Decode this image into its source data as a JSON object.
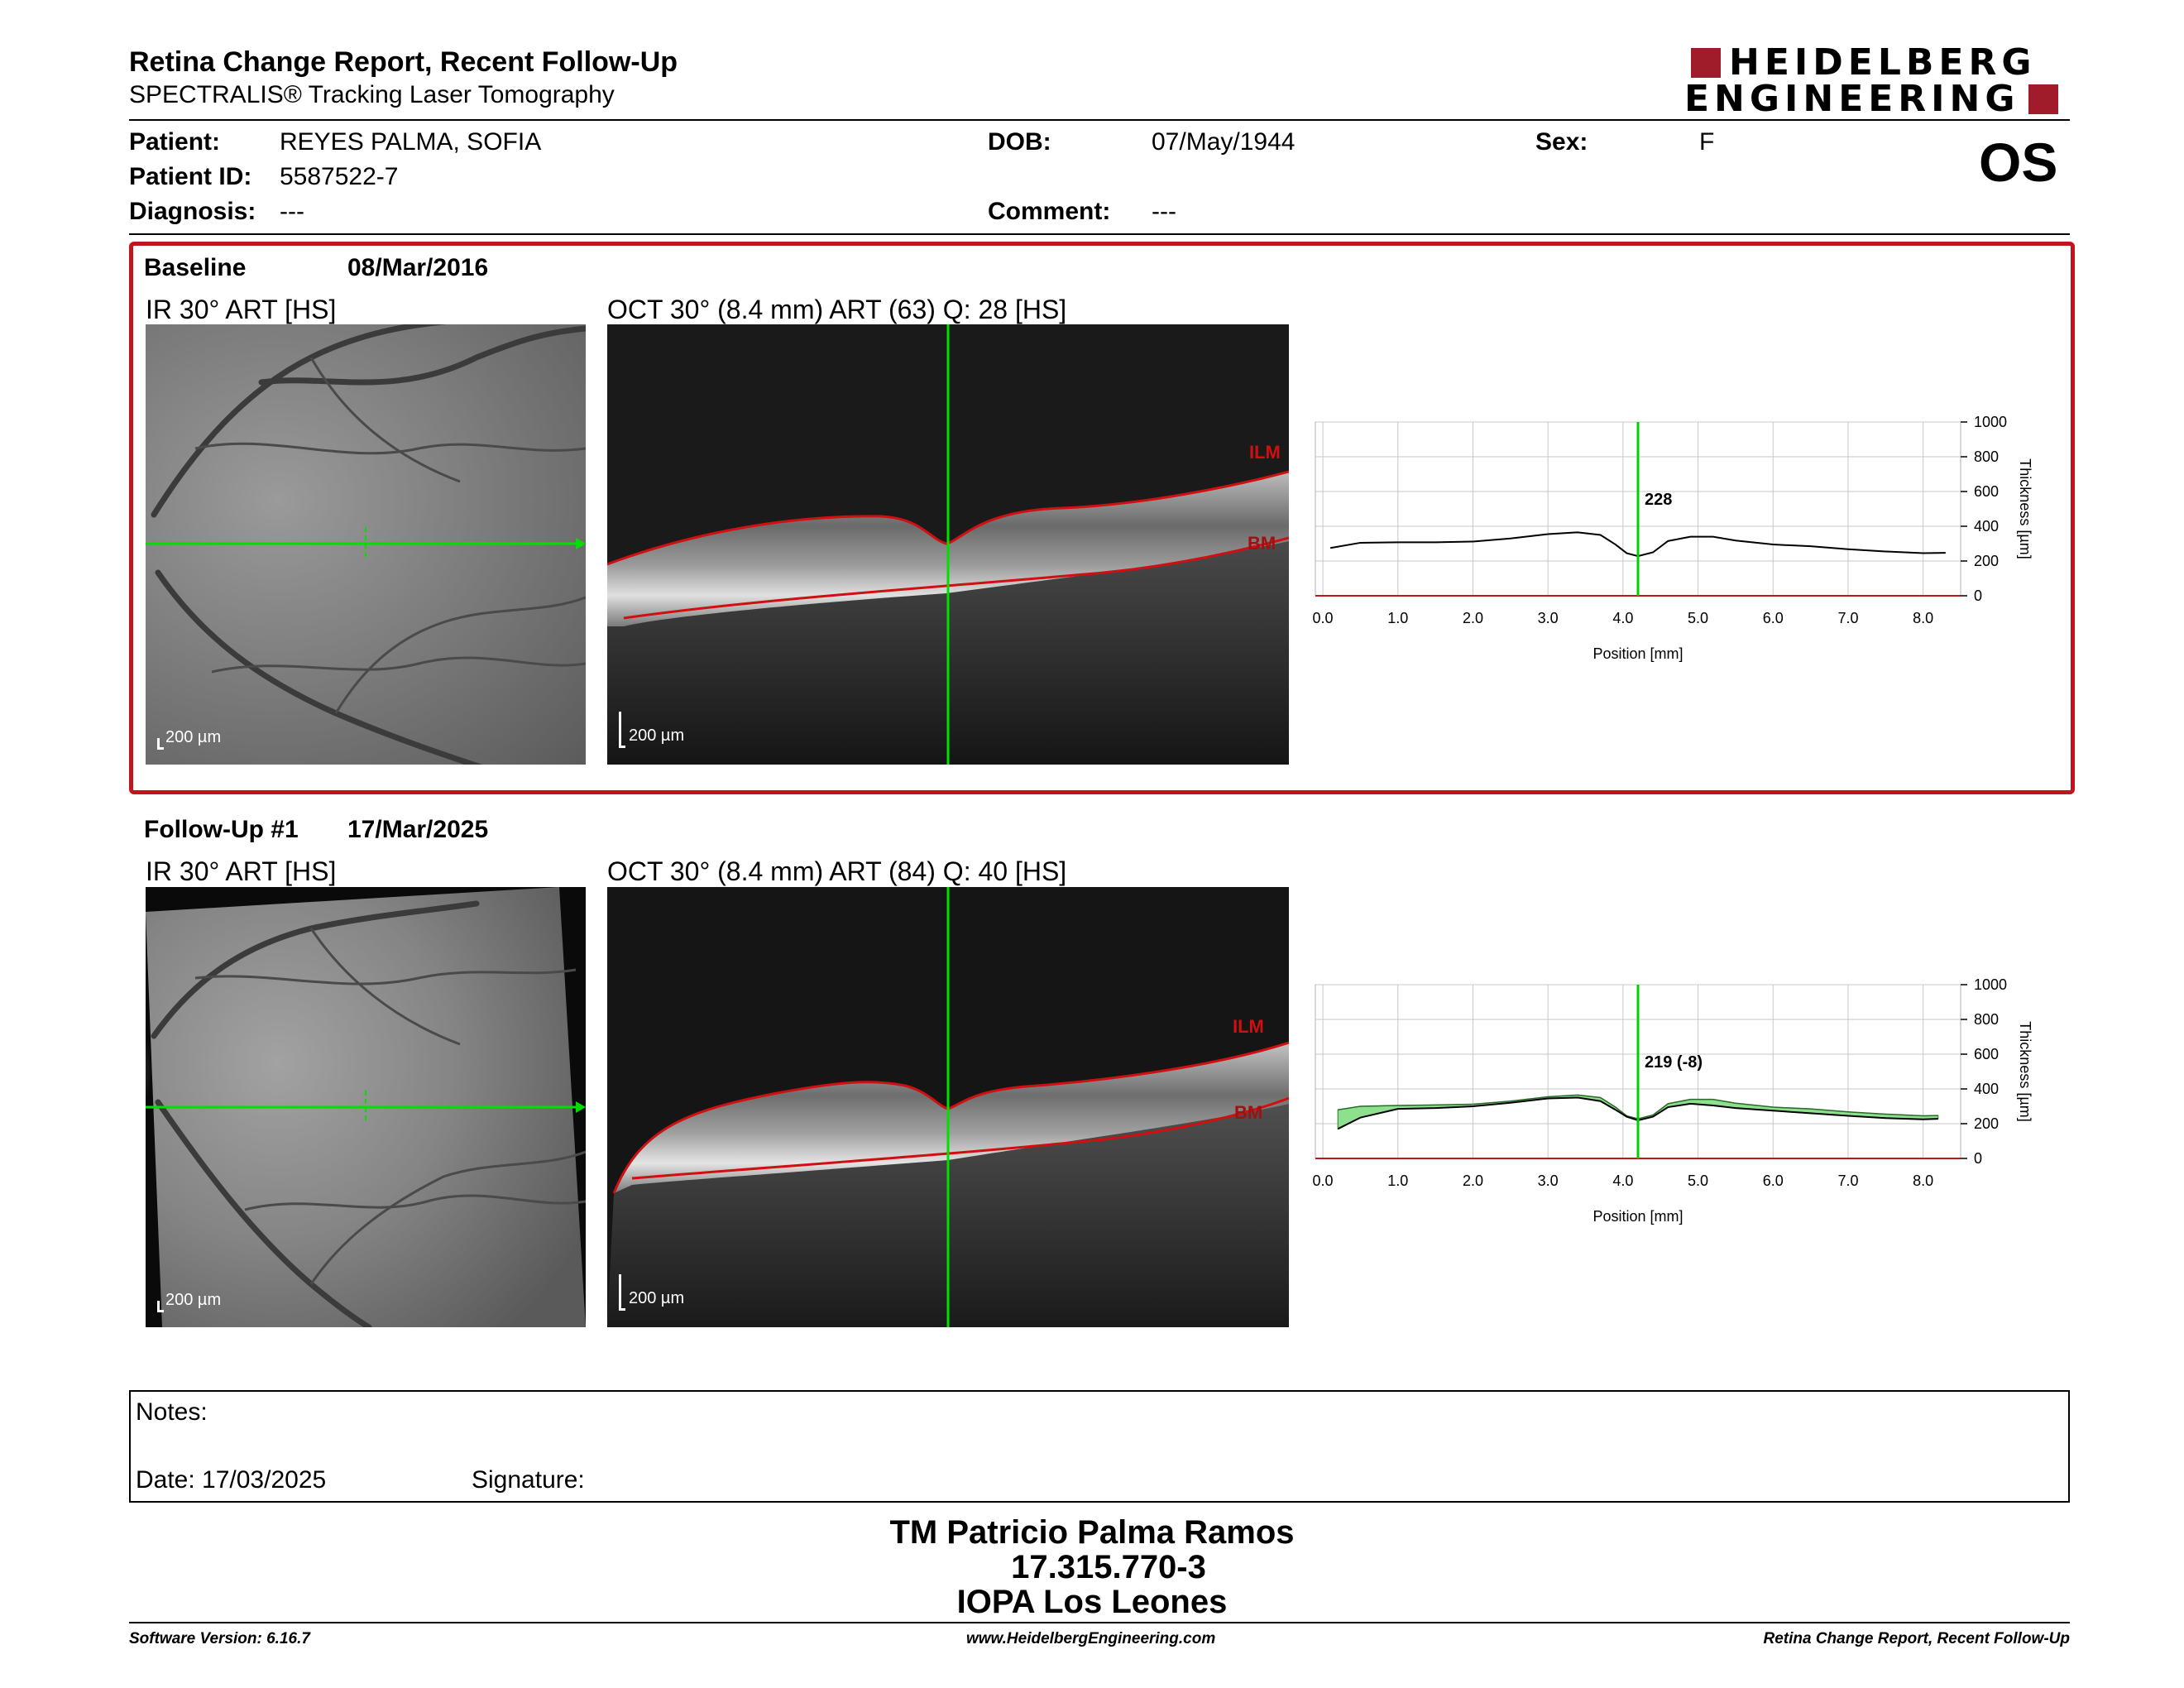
{
  "report": {
    "title": "Retina Change Report, Recent Follow-Up",
    "subtitle": "SPECTRALIS® Tracking Laser Tomography"
  },
  "logo": {
    "line1": "HEIDELBERG",
    "line2": "ENGINEERING",
    "color": "#a01c2a"
  },
  "patient": {
    "patient_label": "Patient:",
    "patient_value": "REYES PALMA, SOFIA",
    "id_label": "Patient ID:",
    "id_value": "5587522-7",
    "diagnosis_label": "Diagnosis:",
    "diagnosis_value": "---",
    "dob_label": "DOB:",
    "dob_value": "07/May/1944",
    "comment_label": "Comment:",
    "comment_value": "---",
    "sex_label": "Sex:",
    "sex_value": "F",
    "eye": "OS"
  },
  "baseline": {
    "label": "Baseline",
    "date": "08/Mar/2016",
    "ir_label": "IR 30° ART [HS]",
    "oct_label": "OCT 30° (8.4 mm) ART (63) Q: 28 [HS]",
    "ir_scale": "200 µm",
    "oct_scale": "200 µm",
    "ilm": "ILM",
    "bm": "BM"
  },
  "followup": {
    "label": "Follow-Up #1",
    "date": "17/Mar/2025",
    "ir_label": "IR 30° ART [HS]",
    "oct_label": "OCT 30° (8.4 mm) ART (84) Q: 40 [HS]",
    "ir_scale": "200 µm",
    "oct_scale": "200 µm",
    "ilm": "ILM",
    "bm": "BM"
  },
  "chart_data": [
    {
      "type": "line",
      "xlabel": "Position [mm]",
      "ylabel": "Thickness [µm]",
      "xlim": [
        -0.1,
        8.5
      ],
      "ylim": [
        0,
        1000
      ],
      "xticks": [
        "0.0",
        "1.0",
        "2.0",
        "3.0",
        "4.0",
        "5.0",
        "6.0",
        "7.0",
        "8.0"
      ],
      "yticks": [
        "0",
        "200",
        "400",
        "600",
        "800",
        "1000"
      ],
      "cursor_x": 4.2,
      "cursor_label": "228",
      "grid": true,
      "series": [
        {
          "values": [
            [
              0.1,
              275
            ],
            [
              0.5,
              305
            ],
            [
              1.0,
              308
            ],
            [
              1.5,
              308
            ],
            [
              2.0,
              312
            ],
            [
              2.5,
              330
            ],
            [
              3.0,
              355
            ],
            [
              3.4,
              365
            ],
            [
              3.7,
              350
            ],
            [
              3.9,
              295
            ],
            [
              4.05,
              245
            ],
            [
              4.2,
              228
            ],
            [
              4.4,
              250
            ],
            [
              4.6,
              315
            ],
            [
              4.9,
              340
            ],
            [
              5.2,
              340
            ],
            [
              5.5,
              318
            ],
            [
              6.0,
              295
            ],
            [
              6.5,
              285
            ],
            [
              7.0,
              268
            ],
            [
              7.5,
              255
            ],
            [
              8.0,
              245
            ],
            [
              8.3,
              247
            ]
          ]
        }
      ]
    },
    {
      "type": "area",
      "xlabel": "Position [mm]",
      "ylabel": "Thickness [µm]",
      "xlim": [
        -0.1,
        8.5
      ],
      "ylim": [
        0,
        1000
      ],
      "xticks": [
        "0.0",
        "1.0",
        "2.0",
        "3.0",
        "4.0",
        "5.0",
        "6.0",
        "7.0",
        "8.0"
      ],
      "yticks": [
        "0",
        "200",
        "400",
        "600",
        "800",
        "1000"
      ],
      "cursor_x": 4.2,
      "cursor_label": "219 (-8)",
      "grid": true,
      "series": [
        {
          "values": [
            [
              0.2,
              170
            ],
            [
              0.5,
              235
            ],
            [
              1.0,
              285
            ],
            [
              1.5,
              290
            ],
            [
              2.0,
              300
            ],
            [
              2.5,
              320
            ],
            [
              3.0,
              345
            ],
            [
              3.4,
              350
            ],
            [
              3.7,
              330
            ],
            [
              3.9,
              280
            ],
            [
              4.05,
              240
            ],
            [
              4.2,
              219
            ],
            [
              4.4,
              240
            ],
            [
              4.6,
              295
            ],
            [
              4.9,
              315
            ],
            [
              5.2,
              305
            ],
            [
              5.5,
              290
            ],
            [
              6.0,
              275
            ],
            [
              6.5,
              260
            ],
            [
              7.0,
              245
            ],
            [
              7.5,
              232
            ],
            [
              8.0,
              225
            ],
            [
              8.2,
              228
            ]
          ]
        },
        {
          "values": [
            [
              0.2,
              280
            ],
            [
              0.5,
              300
            ],
            [
              1.0,
              305
            ],
            [
              1.5,
              308
            ],
            [
              2.0,
              312
            ],
            [
              2.5,
              330
            ],
            [
              3.0,
              355
            ],
            [
              3.4,
              365
            ],
            [
              3.7,
              350
            ],
            [
              3.9,
              295
            ],
            [
              4.05,
              245
            ],
            [
              4.2,
              228
            ],
            [
              4.4,
              250
            ],
            [
              4.6,
              315
            ],
            [
              4.9,
              340
            ],
            [
              5.2,
              340
            ],
            [
              5.5,
              318
            ],
            [
              6.0,
              295
            ],
            [
              6.5,
              285
            ],
            [
              7.0,
              268
            ],
            [
              7.5,
              255
            ],
            [
              8.0,
              245
            ],
            [
              8.2,
              247
            ]
          ]
        }
      ],
      "fill_color": "#8ee08e"
    }
  ],
  "notes": {
    "label": "Notes:",
    "date_label": "Date: 17/03/2025",
    "signature_label": "Signature:"
  },
  "signatory": {
    "name": "TM Patricio Palma Ramos",
    "id": "17.315.770-3",
    "clinic": "IOPA Los Leones"
  },
  "footer": {
    "left": "Software Version: 6.16.7",
    "center": "www.HeidelbergEngineering.com",
    "right": "Retina Change Report, Recent Follow-Up"
  },
  "colors": {
    "accent_red": "#c0151d",
    "scan_green": "#00e000",
    "layer_red": "#d01010"
  }
}
